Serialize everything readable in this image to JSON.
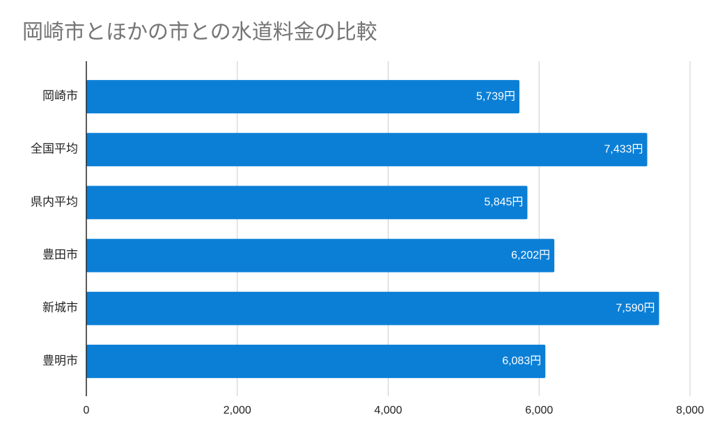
{
  "chart_data": {
    "type": "barh",
    "title": "岡崎市とほかの市との水道料金の比較",
    "categories": [
      "岡崎市",
      "全国平均",
      "県内平均",
      "豊田市",
      "新城市",
      "豊明市"
    ],
    "values": [
      5739,
      7433,
      5845,
      6202,
      7590,
      6083
    ],
    "value_labels": [
      "5,739円",
      "7,433円",
      "5,845円",
      "6,202円",
      "7,590円",
      "6,083円"
    ],
    "color": "#0b7fd6",
    "xlim": [
      0,
      8000
    ],
    "xticks": [
      0,
      {
        "value": 2000,
        "label": "2,000"
      },
      {
        "value": 4000,
        "label": "4,000"
      },
      {
        "value": 6000,
        "label": "6,000"
      },
      {
        "value": 8000,
        "label": "8,000"
      }
    ],
    "grid": true
  }
}
